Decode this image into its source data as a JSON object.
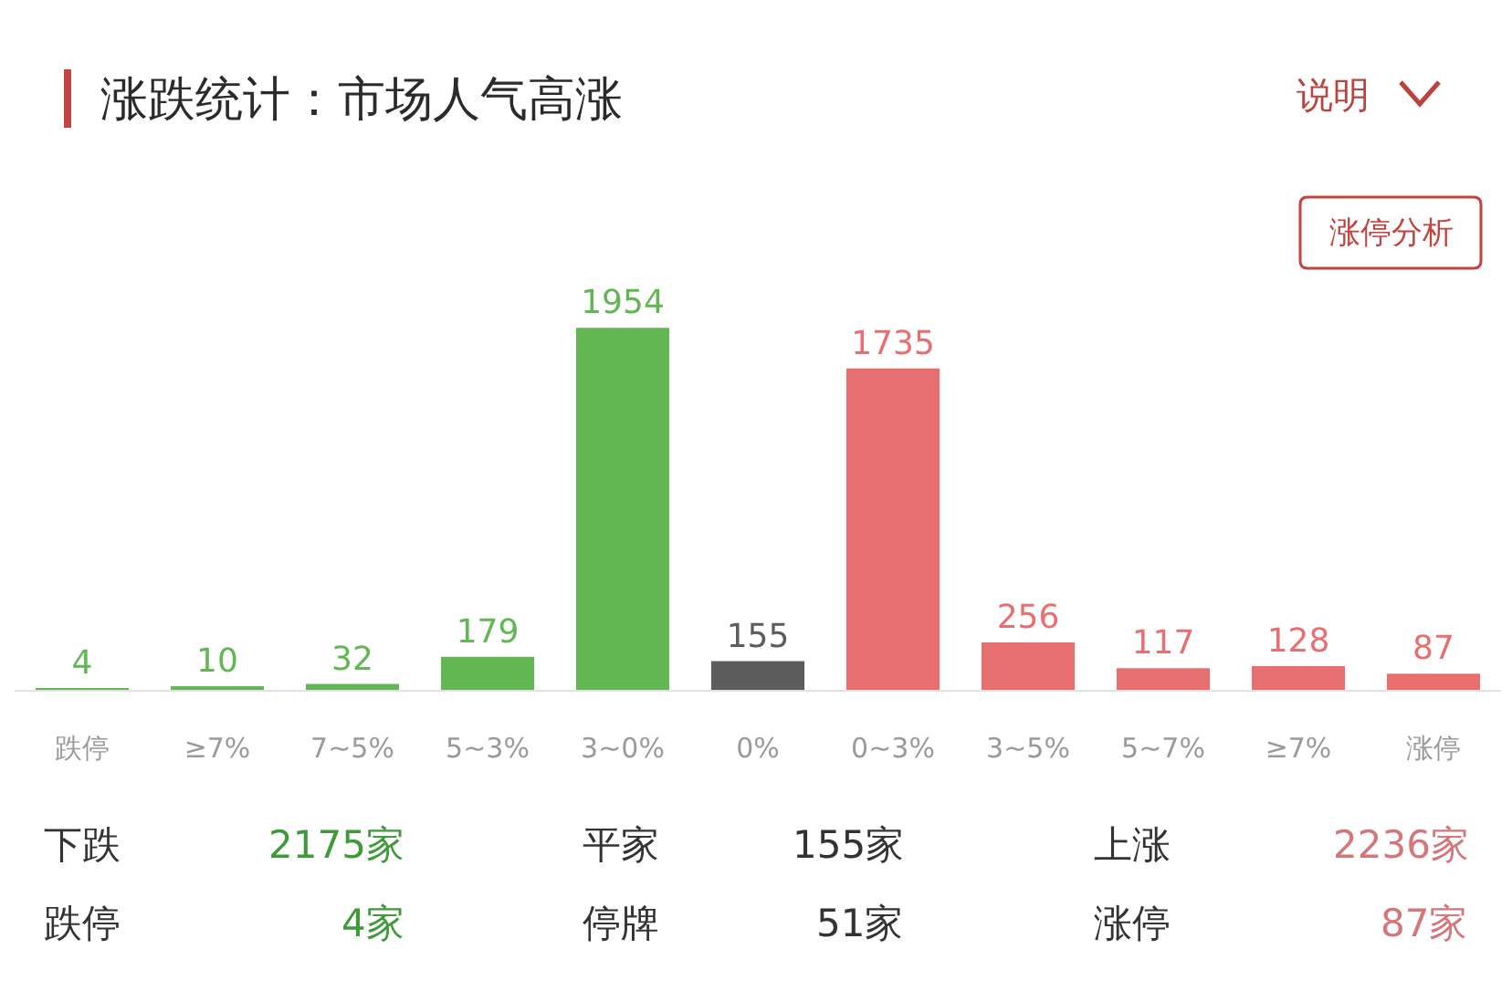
{
  "chart_data": [
    {
      "type": "bar",
      "title": "涨跌统计：市场人气高涨",
      "annotations": [
        "说明",
        "涨停分析"
      ],
      "categories": [
        "跌停",
        "≥7%",
        "7~5%",
        "5~3%",
        "3~0%",
        "0%",
        "0~3%",
        "3~5%",
        "5~7%",
        "≥7%",
        "涨停"
      ],
      "values": [
        4,
        10,
        32,
        179,
        1954,
        155,
        1735,
        256,
        117,
        128,
        87
      ],
      "colors": [
        "#62b754",
        "#62b754",
        "#62b754",
        "#62b754",
        "#62b754",
        "#5c5c5c",
        "#e86f6f",
        "#e86f6f",
        "#e86f6f",
        "#e86f6f",
        "#e86f6f"
      ],
      "data_labels": true
    },
    {
      "type": "other",
      "categories": [
        "下跌",
        "平家",
        "上涨",
        "跌停",
        "停牌",
        "涨停"
      ],
      "value_labels": [
        "2175家",
        "155家",
        "2236家",
        "4家",
        "51家",
        "87家"
      ],
      "colors": [
        "#3f9a3a",
        "#333333",
        "#d4767a",
        "#3f9a3a",
        "#333333",
        "#d4767a"
      ]
    }
  ]
}
